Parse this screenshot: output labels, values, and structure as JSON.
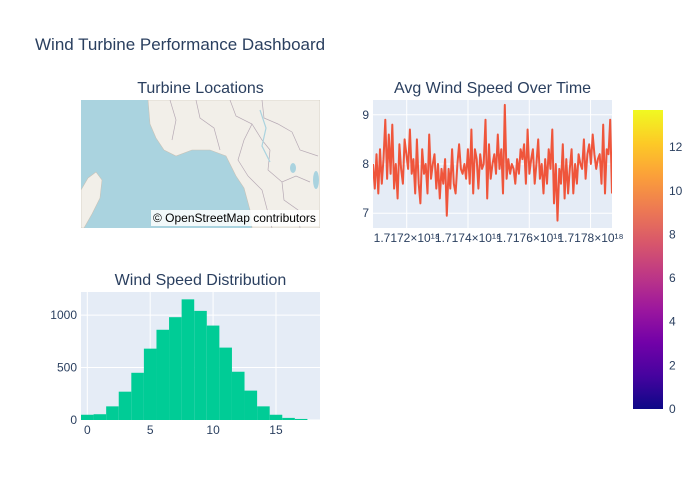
{
  "dashboard": {
    "title": "Wind Turbine Performance Dashboard"
  },
  "colors": {
    "plot_bg": "#e5ecf6",
    "grid": "#ffffff",
    "line": "#ef553b",
    "hist": "#00cc96",
    "water": "#aad3df",
    "land": "#f2efe9"
  },
  "chart_data": [
    {
      "type": "map",
      "title": "Turbine Locations",
      "attribution": "© OpenStreetMap contributors"
    },
    {
      "type": "line",
      "title": "Avg Wind Speed Over Time",
      "x_tick_labels": [
        "1.7172×10¹⁸",
        "1.7174×10¹⁸",
        "1.7176×10¹⁸",
        "1.7178×10¹⁸"
      ],
      "x_tick_values": [
        1.7172,
        1.7174,
        1.7176,
        1.7178
      ],
      "xlim": [
        1.71709,
        1.71787
      ],
      "ylim": [
        6.7,
        9.3
      ],
      "y_ticks": [
        7,
        8,
        9
      ],
      "series": [
        {
          "values": [
            8.0,
            7.5,
            8.2,
            7.4,
            8.3,
            7.6,
            8.1,
            8.9,
            7.7,
            8.6,
            7.8,
            8.8,
            7.5,
            8.0,
            7.3,
            8.4,
            7.9,
            7.6,
            8.5,
            8.2,
            7.9,
            8.7,
            7.8,
            8.1,
            7.4,
            8.5,
            7.6,
            7.2,
            8.3,
            7.8,
            8.0,
            7.4,
            8.6,
            7.7,
            8.0,
            8.2,
            7.5,
            8.0,
            7.3,
            7.9,
            7.6,
            8.1,
            6.95,
            7.9,
            7.5,
            8.3,
            7.6,
            7.4,
            8.0,
            8.4,
            7.9,
            7.8,
            8.0,
            7.7,
            8.3,
            7.6,
            8.7,
            7.4,
            8.3,
            8.1,
            7.5,
            8.2,
            7.9,
            8.0,
            8.9,
            7.3,
            8.4,
            7.7,
            8.0,
            8.2,
            7.8,
            8.6,
            7.9,
            8.3,
            7.4,
            9.2,
            7.7,
            8.1,
            7.8,
            8.0,
            7.9,
            7.6,
            8.1,
            7.8,
            8.3,
            8.1,
            8.4,
            7.6,
            8.7,
            7.8,
            8.1,
            8.3,
            7.6,
            8.0,
            8.5,
            7.7,
            8.0,
            7.4,
            8.1,
            7.6,
            8.3,
            7.9,
            8.7,
            7.2,
            8.0,
            6.85,
            7.9,
            7.6,
            8.4,
            7.3,
            8.1,
            7.4,
            7.9,
            8.3,
            7.4,
            8.0,
            7.6,
            8.2,
            8.0,
            7.9,
            8.5,
            7.7,
            8.2,
            8.4,
            8.0,
            8.6,
            8.2,
            7.9,
            8.1,
            8.2,
            7.6,
            8.8,
            7.4,
            8.3,
            8.2,
            8.9,
            7.4
          ]
        }
      ]
    },
    {
      "type": "bar",
      "title": "Wind Speed Distribution",
      "bin_edges_start": -0.5,
      "bin_width": 1,
      "values": [
        50,
        55,
        130,
        270,
        450,
        680,
        860,
        980,
        1150,
        1040,
        900,
        690,
        460,
        280,
        130,
        50,
        20,
        10
      ],
      "xlim": [
        -0.5,
        18.5
      ],
      "ylim": [
        0,
        1220
      ],
      "x_ticks": [
        0,
        5,
        10,
        15
      ],
      "y_ticks": [
        0,
        500,
        1000
      ]
    }
  ],
  "colorbar": {
    "range": [
      0,
      13.7
    ],
    "ticks": [
      0,
      2,
      4,
      6,
      8,
      10,
      12
    ],
    "stops": [
      "#0d0887",
      "#46039f",
      "#7201a8",
      "#9c179e",
      "#bd3786",
      "#d8576b",
      "#ed7953",
      "#fb9f3a",
      "#fdca26",
      "#f0f921"
    ]
  }
}
